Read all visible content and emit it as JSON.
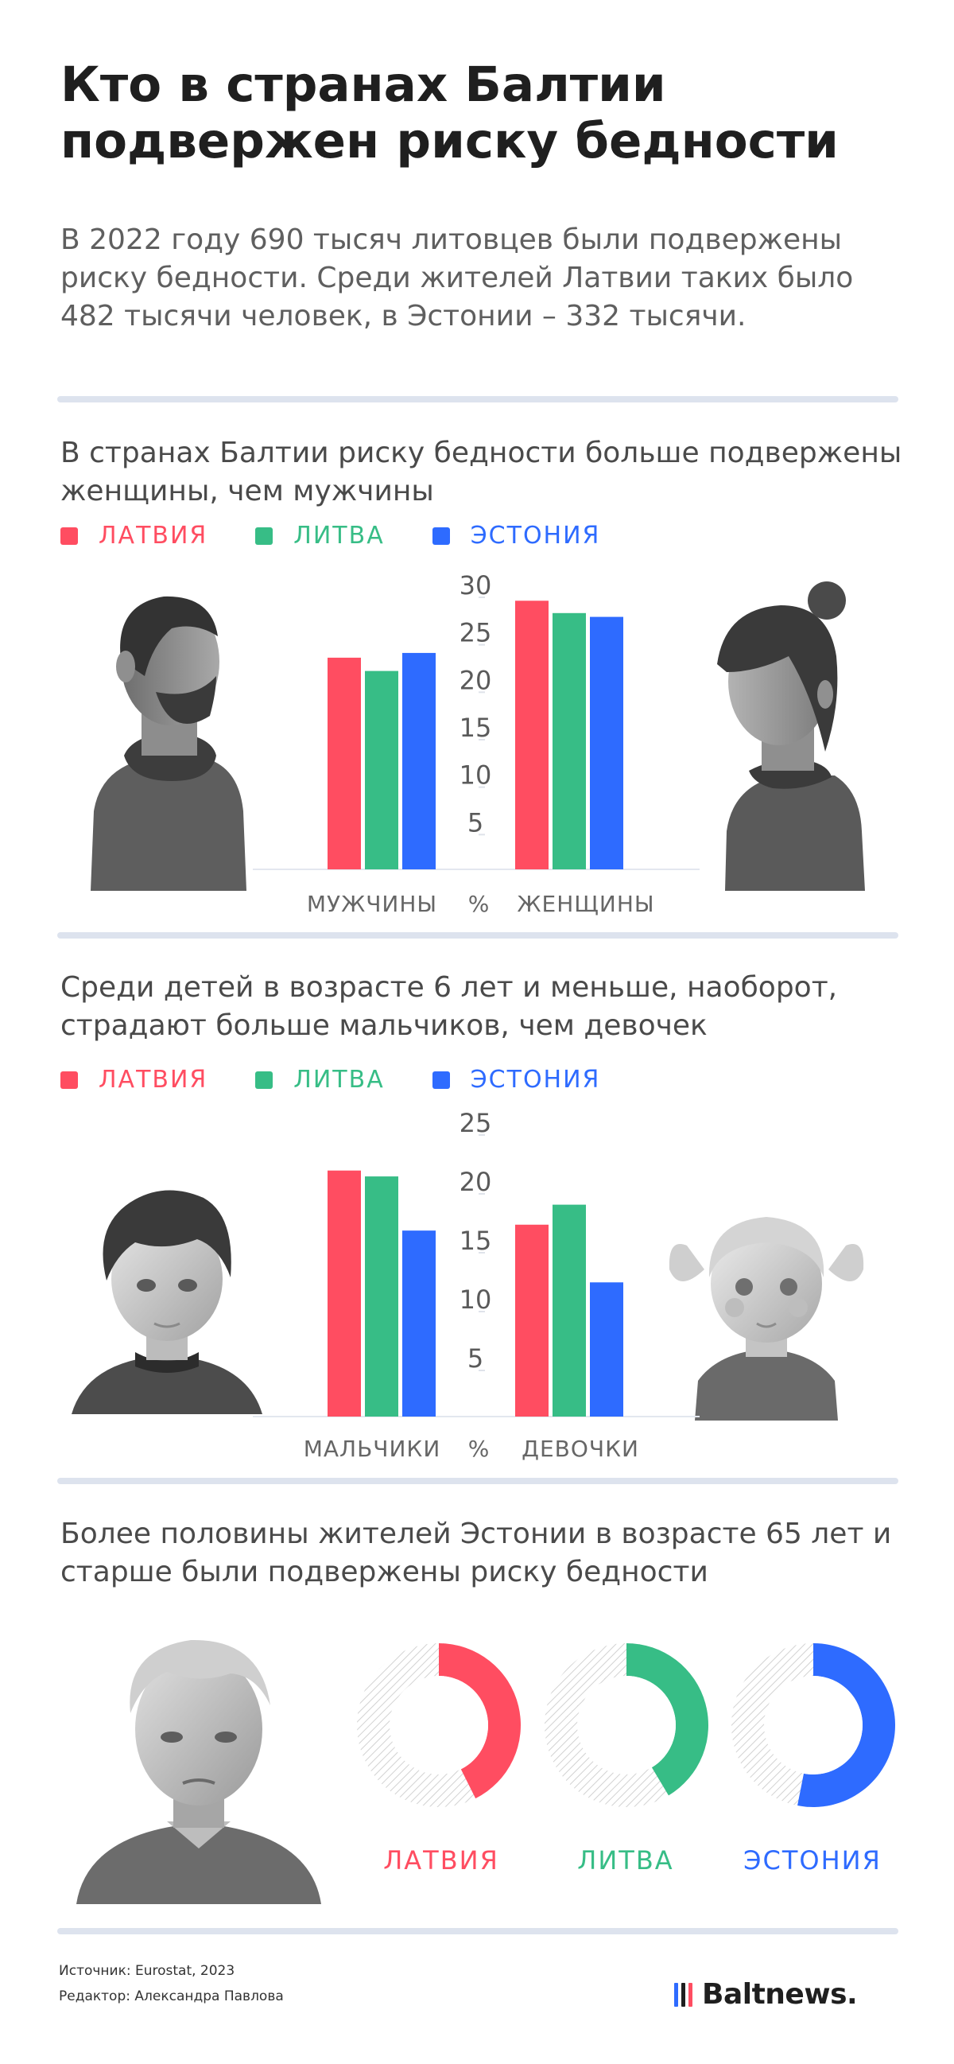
{
  "title": "Кто в странах Балтии подвержен риску бедности",
  "intro": "В 2022 году 690 тысяч литовцев были подвержены риску бедности. Среди жителей Латвии таких было 482 тысячи человек, в Эстонии – 332 тысячи.",
  "colors": {
    "latvia": "#ff4d61",
    "lithuania": "#37bd86",
    "estonia": "#2e6bff"
  },
  "legend": {
    "latvia": "ЛАТВИЯ",
    "lithuania": "ЛИТВА",
    "estonia": "ЭСТОНИЯ"
  },
  "sections": [
    {
      "title": "В странах Балтии риску бедности больше подвержены женщины, чем мужчины"
    },
    {
      "title": "Среди детей в возрасте 6 лет и меньше, наоборот, страдают больше мальчиков, чем девочек"
    },
    {
      "title": "Более половины жителей Эстонии в возрасте 65 лет и старше были подвержены риску бедности"
    }
  ],
  "chart_data": [
    {
      "type": "bar",
      "categories": [
        "МУЖЧИНЫ",
        "ЖЕНЩИНЫ"
      ],
      "unit_label": "%",
      "yticks": [
        5,
        10,
        15,
        20,
        25,
        30
      ],
      "ylim": [
        0,
        30
      ],
      "series": [
        {
          "name": "ЛАТВИЯ",
          "color": "#ff4d61",
          "values": [
            22.3,
            28.3
          ]
        },
        {
          "name": "ЛИТВА",
          "color": "#37bd86",
          "values": [
            20.9,
            27.0
          ]
        },
        {
          "name": "ЭСТОНИЯ",
          "color": "#2e6bff",
          "values": [
            22.8,
            26.6
          ]
        }
      ],
      "grid": false
    },
    {
      "type": "bar",
      "categories": [
        "МАЛЬЧИКИ",
        "ДЕВОЧКИ"
      ],
      "unit_label": "%",
      "yticks": [
        5,
        10,
        15,
        20,
        25
      ],
      "ylim": [
        0,
        25
      ],
      "series": [
        {
          "name": "ЛАТВИЯ",
          "color": "#ff4d61",
          "values": [
            20.9,
            16.3
          ]
        },
        {
          "name": "ЛИТВА",
          "color": "#37bd86",
          "values": [
            20.4,
            18.0
          ]
        },
        {
          "name": "ЭСТОНИЯ",
          "color": "#2e6bff",
          "values": [
            15.8,
            11.4
          ]
        }
      ],
      "grid": false
    },
    {
      "type": "pie",
      "items": [
        {
          "name": "ЛАТВИЯ",
          "label": "42,6",
          "value": 42.6,
          "unit": "%",
          "color": "#ff4d61"
        },
        {
          "name": "ЛИТВА",
          "label": "41,4",
          "value": 41.4,
          "unit": "%",
          "color": "#37bd86"
        },
        {
          "name": "ЭСТОНИЯ",
          "label": "53,1",
          "value": 53.1,
          "unit": "%",
          "color": "#2e6bff"
        }
      ]
    }
  ],
  "footer": {
    "source": "Источник: Eurostat, 2023",
    "editor": "Редактор: Александра Павлова",
    "logo": "Baltnews."
  }
}
